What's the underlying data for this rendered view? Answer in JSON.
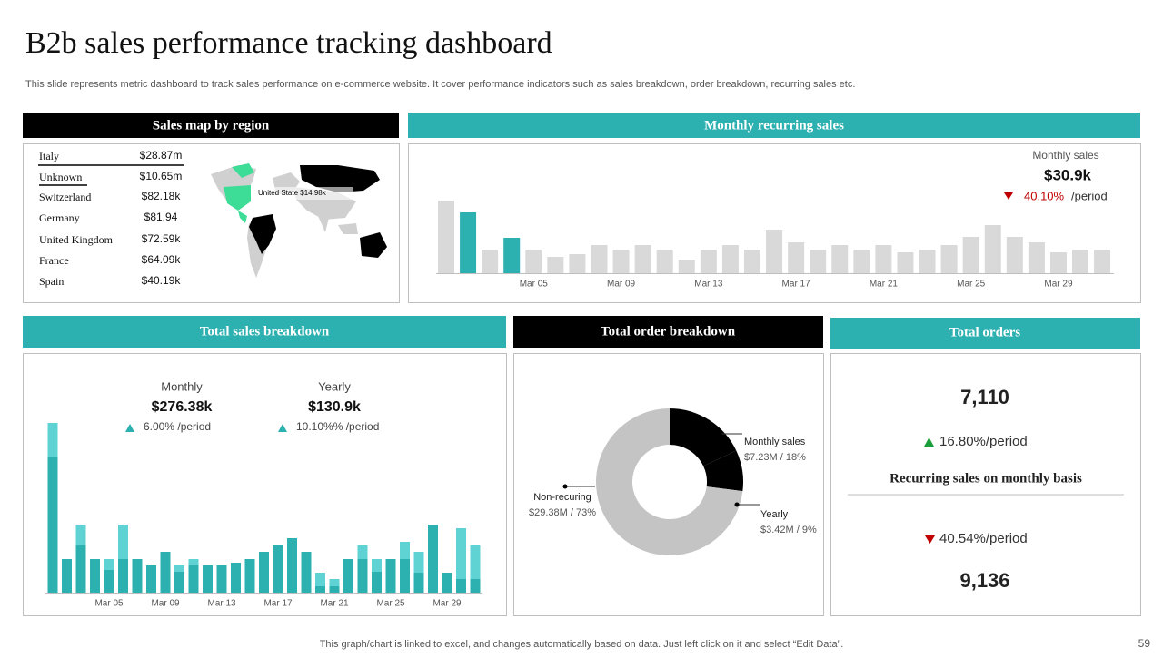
{
  "header": {
    "title": "B2b sales performance tracking dashboard",
    "subtitle": "This slide represents metric dashboard to track sales performance on e-commerce website. It cover performance indicators such as sales breakdown, order breakdown, recurring sales etc."
  },
  "sales_map": {
    "title": "Sales map by region",
    "rows": [
      [
        "Italy",
        "$28.87m"
      ],
      [
        "Unknown",
        "$10.65m"
      ],
      [
        "Switzerland",
        "$82.18k"
      ],
      [
        "Germany",
        "$81.94"
      ],
      [
        "United Kingdom",
        "$72.59k"
      ],
      [
        "France",
        "$64.09k"
      ],
      [
        "Spain",
        "$40.19k"
      ]
    ],
    "map_label": "United State $14.98k"
  },
  "monthly_recurring": {
    "title": "Monthly recurring sales",
    "type": "bar",
    "metric_label": "Monthly sales",
    "metric_value": "$30.9k",
    "change": "40.10%",
    "change_unit": "/period",
    "categories": [
      null,
      null,
      null,
      null,
      "Mar 05",
      null,
      null,
      null,
      "Mar 09",
      null,
      null,
      null,
      "Mar 13",
      null,
      null,
      null,
      "Mar 17",
      null,
      null,
      null,
      "Mar 21",
      null,
      null,
      null,
      "Mar 25",
      null,
      null,
      null,
      "Mar 29",
      null,
      null
    ],
    "values": [
      80,
      67,
      26,
      39,
      26,
      18,
      21,
      31,
      26,
      31,
      26,
      15,
      26,
      31,
      26,
      48,
      34,
      26,
      31,
      26,
      31,
      23,
      26,
      31,
      40,
      53,
      40,
      34,
      23,
      26,
      26
    ],
    "colors": [
      "#d9d9d9",
      "#2db0b0",
      "#d9d9d9",
      "#2db0b0",
      "#d9d9d9",
      "#d9d9d9",
      "#d9d9d9",
      "#d9d9d9",
      "#d9d9d9",
      "#d9d9d9",
      "#d9d9d9",
      "#d9d9d9",
      "#d9d9d9",
      "#d9d9d9",
      "#d9d9d9",
      "#d9d9d9",
      "#d9d9d9",
      "#d9d9d9",
      "#d9d9d9",
      "#d9d9d9",
      "#d9d9d9",
      "#d9d9d9",
      "#d9d9d9",
      "#d9d9d9",
      "#d9d9d9",
      "#d9d9d9",
      "#d9d9d9",
      "#d9d9d9",
      "#d9d9d9",
      "#d9d9d9",
      "#d9d9d9"
    ]
  },
  "total_sales": {
    "title": "Total sales breakdown",
    "type": "bar",
    "stacked": true,
    "metrics": [
      {
        "label": "Monthly",
        "value": "$276.38k",
        "change": "6.00% /period"
      },
      {
        "label": "Yearly",
        "value": "$130.9k",
        "change": "10.10%% /period"
      }
    ],
    "categories": [
      null,
      null,
      null,
      null,
      "Mar 05",
      null,
      null,
      null,
      "Mar 09",
      null,
      null,
      null,
      "Mar 13",
      null,
      null,
      null,
      "Mar 17",
      null,
      null,
      null,
      "Mar 21",
      null,
      null,
      null,
      "Mar 25",
      null,
      null,
      null,
      "Mar 29",
      null,
      null
    ],
    "series": [
      {
        "color": "#2db0b0",
        "values": [
          149,
          37,
          52,
          37,
          25,
          37,
          37,
          30,
          45,
          23,
          30,
          30,
          30,
          33,
          37,
          45,
          52,
          60,
          45,
          7,
          7,
          37,
          37,
          23,
          37,
          37,
          22,
          75,
          22,
          15,
          15
        ]
      },
      {
        "color": "#5fd3d3",
        "values": [
          38,
          0,
          23,
          0,
          12,
          38,
          0,
          0,
          0,
          7,
          7,
          0,
          0,
          0,
          0,
          0,
          0,
          0,
          0,
          15,
          8,
          0,
          15,
          14,
          0,
          19,
          23,
          0,
          0,
          56,
          37
        ]
      }
    ]
  },
  "order_breakdown": {
    "title": "Total order breakdown",
    "type": "pie",
    "donut": true,
    "categories": [
      "Monthly sales",
      "Yearly",
      "Non-recuring"
    ],
    "values": [
      18,
      9,
      73
    ],
    "value_labels": [
      "$7.23M / 18%",
      "$3.42M / 9%",
      "$29.38M / 73%"
    ],
    "colors": [
      "#000000",
      "#000000",
      "#c4c4c4"
    ]
  },
  "total_orders": {
    "title": "Total orders",
    "value": "7,110",
    "change": "16.80%/period",
    "subtitle": "Recurring sales on monthly basis",
    "change2": "40.54%/period",
    "value2": "9,136"
  },
  "footer": {
    "note": "This graph/chart is linked to excel, and changes automatically based on data. Just left click on it and select “Edit Data”.",
    "page": "59"
  }
}
